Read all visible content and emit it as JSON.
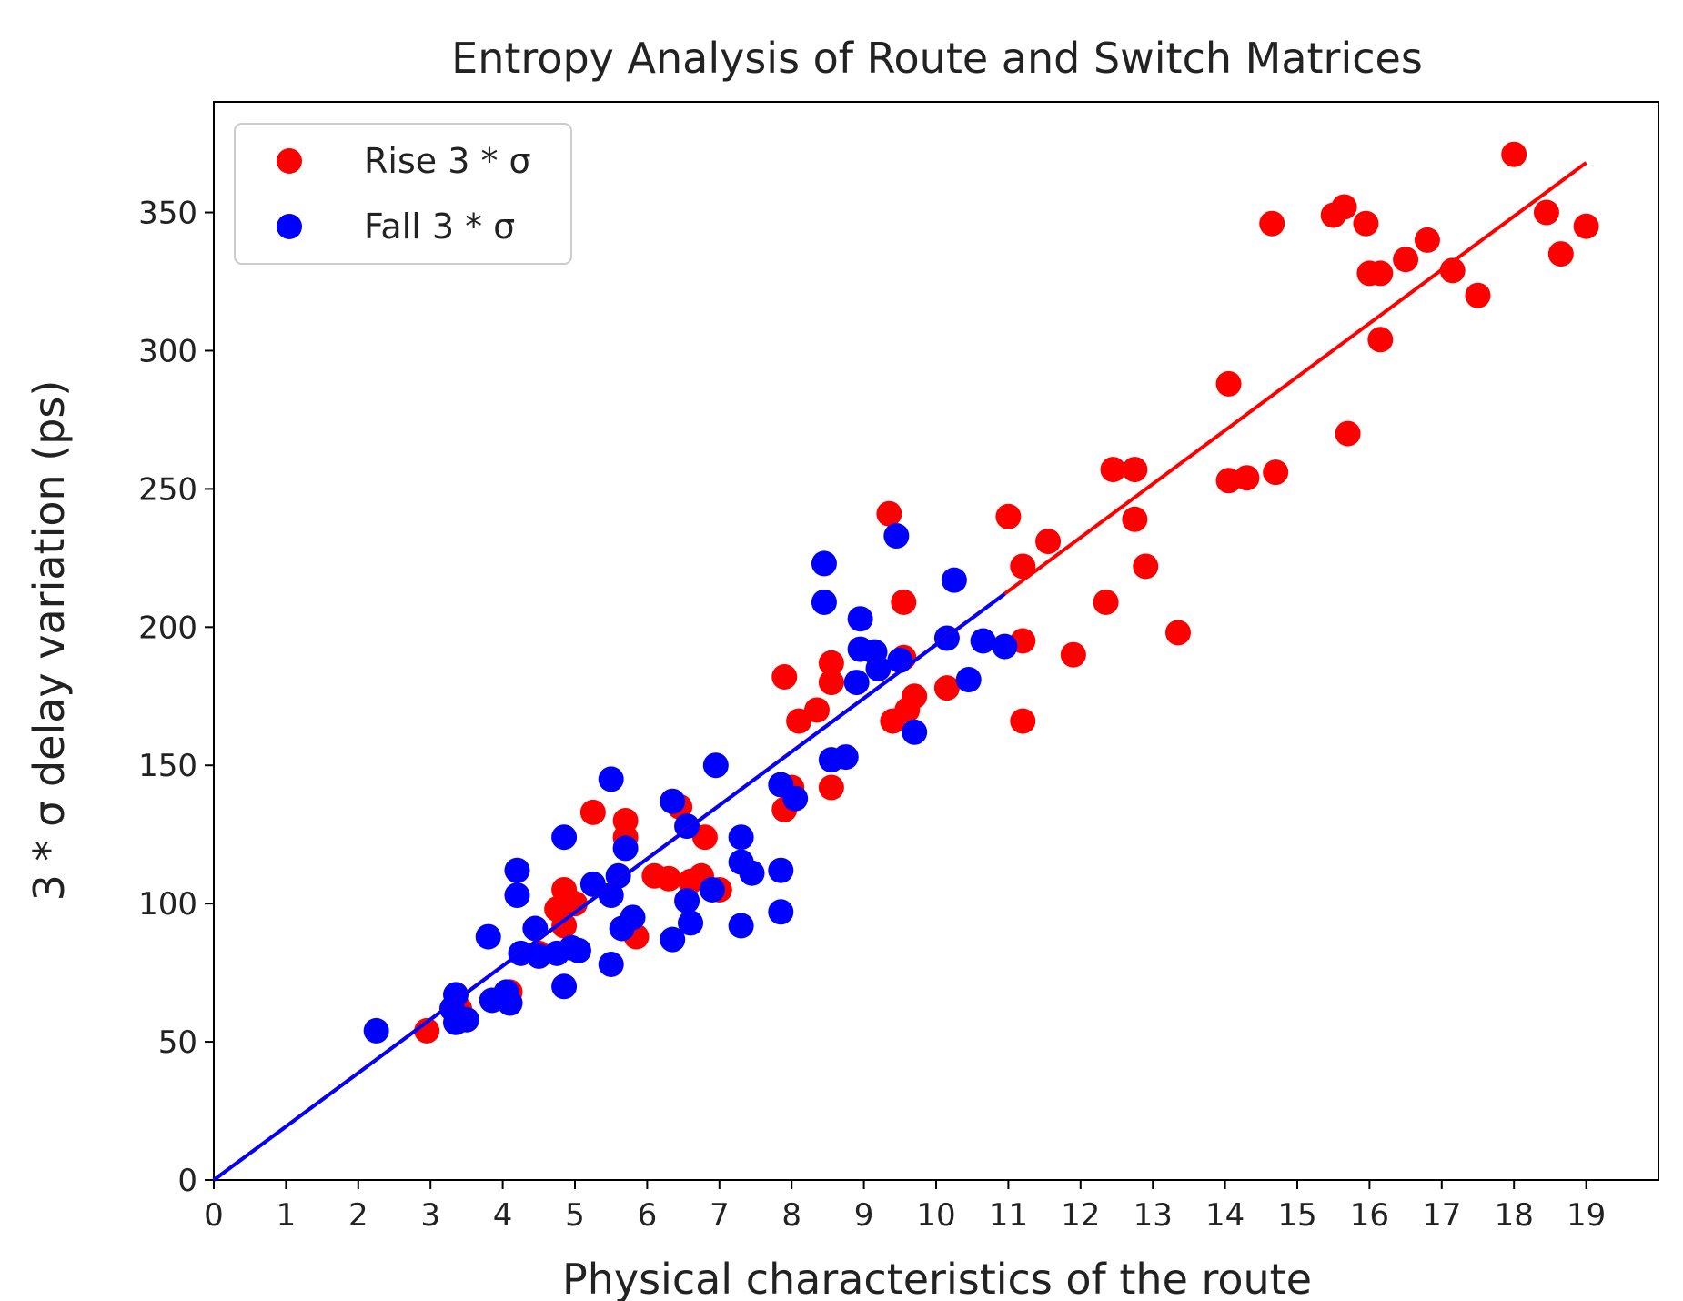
{
  "chart_data": {
    "type": "scatter",
    "title": "Entropy Analysis of Route and Switch Matrices",
    "xlabel": "Physical characteristics of the route",
    "ylabel": "3 * σ delay variation (ps)",
    "xlim": [
      0,
      20
    ],
    "ylim": [
      0,
      390
    ],
    "x_ticks": [
      0,
      1,
      2,
      3,
      4,
      5,
      6,
      7,
      8,
      9,
      10,
      11,
      12,
      13,
      14,
      15,
      16,
      17,
      18,
      19
    ],
    "y_ticks": [
      0,
      50,
      100,
      150,
      200,
      250,
      300,
      350
    ],
    "grid": false,
    "legend_position": "upper left",
    "series": [
      {
        "name": "Rise 3 * σ",
        "color": "#ff0000",
        "points": [
          [
            2.95,
            54
          ],
          [
            3.4,
            62
          ],
          [
            4.1,
            68
          ],
          [
            4.5,
            82
          ],
          [
            4.75,
            98
          ],
          [
            4.85,
            105
          ],
          [
            4.85,
            92
          ],
          [
            5.0,
            100
          ],
          [
            5.25,
            133
          ],
          [
            5.7,
            130
          ],
          [
            5.7,
            124
          ],
          [
            5.85,
            88
          ],
          [
            6.1,
            110
          ],
          [
            6.3,
            109
          ],
          [
            6.45,
            135
          ],
          [
            6.6,
            108
          ],
          [
            6.75,
            110
          ],
          [
            6.8,
            124
          ],
          [
            7.0,
            105
          ],
          [
            7.9,
            182
          ],
          [
            7.9,
            134
          ],
          [
            8.0,
            142
          ],
          [
            8.1,
            166
          ],
          [
            8.35,
            170
          ],
          [
            8.55,
            187
          ],
          [
            8.55,
            180
          ],
          [
            8.55,
            142
          ],
          [
            9.35,
            241
          ],
          [
            9.4,
            166
          ],
          [
            9.55,
            209
          ],
          [
            9.55,
            189
          ],
          [
            9.6,
            170
          ],
          [
            9.7,
            175
          ],
          [
            10.15,
            178
          ],
          [
            11.0,
            240
          ],
          [
            11.2,
            222
          ],
          [
            11.2,
            195
          ],
          [
            11.2,
            166
          ],
          [
            11.55,
            231
          ],
          [
            11.9,
            190
          ],
          [
            12.35,
            209
          ],
          [
            12.45,
            257
          ],
          [
            12.75,
            257
          ],
          [
            12.75,
            239
          ],
          [
            12.9,
            222
          ],
          [
            13.35,
            198
          ],
          [
            14.05,
            288
          ],
          [
            14.05,
            253
          ],
          [
            14.3,
            254
          ],
          [
            14.65,
            346
          ],
          [
            14.7,
            256
          ],
          [
            15.5,
            349
          ],
          [
            15.65,
            352
          ],
          [
            15.7,
            270
          ],
          [
            15.95,
            346
          ],
          [
            16.0,
            328
          ],
          [
            16.15,
            328
          ],
          [
            16.15,
            304
          ],
          [
            16.5,
            333
          ],
          [
            16.8,
            340
          ],
          [
            17.15,
            329
          ],
          [
            17.5,
            320
          ],
          [
            18.0,
            371
          ],
          [
            18.45,
            350
          ],
          [
            18.65,
            335
          ],
          [
            19.0,
            345
          ]
        ]
      },
      {
        "name": "Fall 3 * σ",
        "color": "#0000ff",
        "points": [
          [
            2.25,
            54
          ],
          [
            3.3,
            62
          ],
          [
            3.35,
            67
          ],
          [
            3.35,
            57
          ],
          [
            3.5,
            58
          ],
          [
            3.8,
            88
          ],
          [
            3.85,
            65
          ],
          [
            4.05,
            68
          ],
          [
            4.1,
            64
          ],
          [
            4.2,
            112
          ],
          [
            4.2,
            103
          ],
          [
            4.25,
            82
          ],
          [
            4.45,
            91
          ],
          [
            4.5,
            81
          ],
          [
            4.75,
            82
          ],
          [
            4.85,
            124
          ],
          [
            4.85,
            70
          ],
          [
            4.95,
            84
          ],
          [
            5.05,
            83
          ],
          [
            5.25,
            107
          ],
          [
            5.5,
            145
          ],
          [
            5.5,
            103
          ],
          [
            5.5,
            78
          ],
          [
            5.6,
            110
          ],
          [
            5.65,
            91
          ],
          [
            5.7,
            120
          ],
          [
            5.8,
            95
          ],
          [
            6.35,
            137
          ],
          [
            6.35,
            87
          ],
          [
            6.55,
            128
          ],
          [
            6.55,
            101
          ],
          [
            6.6,
            93
          ],
          [
            6.9,
            105
          ],
          [
            6.95,
            150
          ],
          [
            7.3,
            124
          ],
          [
            7.3,
            115
          ],
          [
            7.3,
            92
          ],
          [
            7.45,
            111
          ],
          [
            7.85,
            143
          ],
          [
            7.85,
            112
          ],
          [
            7.85,
            97
          ],
          [
            8.05,
            138
          ],
          [
            8.45,
            223
          ],
          [
            8.45,
            209
          ],
          [
            8.55,
            152
          ],
          [
            8.75,
            153
          ],
          [
            8.9,
            180
          ],
          [
            8.95,
            203
          ],
          [
            8.95,
            192
          ],
          [
            9.15,
            191
          ],
          [
            9.2,
            185
          ],
          [
            9.45,
            233
          ],
          [
            9.5,
            188
          ],
          [
            9.7,
            162
          ],
          [
            10.15,
            196
          ],
          [
            10.25,
            217
          ],
          [
            10.45,
            181
          ],
          [
            10.65,
            195
          ],
          [
            10.95,
            193
          ]
        ]
      }
    ],
    "fit_lines": [
      {
        "color": "#ff0000",
        "x": [
          0,
          19
        ],
        "y": [
          0,
          368
        ]
      },
      {
        "color": "#0000ff",
        "x": [
          0,
          10.95
        ],
        "y": [
          0,
          212
        ]
      }
    ]
  }
}
